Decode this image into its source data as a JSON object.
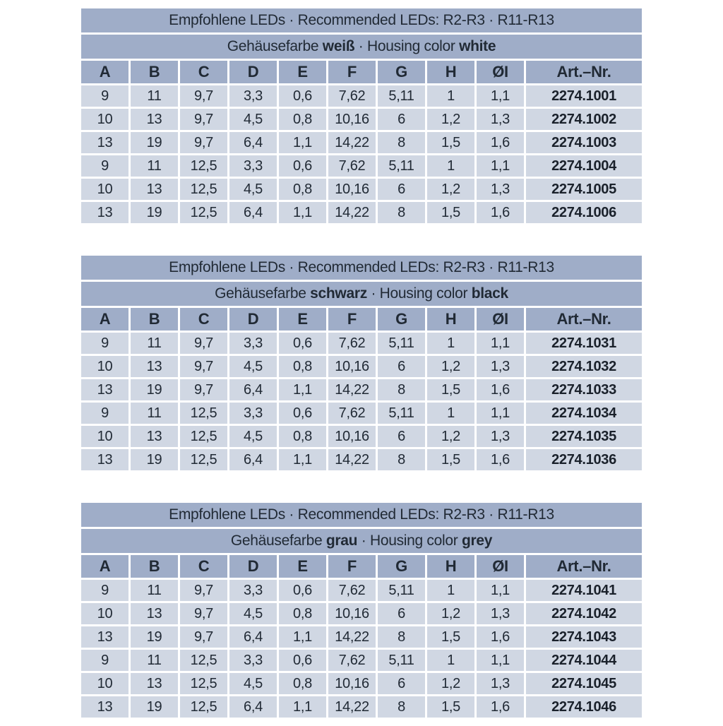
{
  "shared": {
    "title": "Empfohlene LEDs · Recommended LEDs: R2-R3 · R11-R13",
    "columns": [
      "A",
      "B",
      "C",
      "D",
      "E",
      "F",
      "G",
      "H",
      "ØI",
      "Art.–Nr."
    ]
  },
  "colors": {
    "band": "#9fadc8",
    "data_row": "#d0d7e3",
    "separator": "#ffffff",
    "text": "#212a35"
  },
  "tables": [
    {
      "name": "housing-white",
      "subtitle": {
        "de_prefix": "Gehäusefarbe ",
        "de_color": "weiß",
        "mid": " · Housing color ",
        "en_color": "white"
      },
      "rows": [
        [
          "9",
          "11",
          "9,7",
          "3,3",
          "0,6",
          "7,62",
          "5,11",
          "1",
          "1,1",
          "2274.1001"
        ],
        [
          "10",
          "13",
          "9,7",
          "4,5",
          "0,8",
          "10,16",
          "6",
          "1,2",
          "1,3",
          "2274.1002"
        ],
        [
          "13",
          "19",
          "9,7",
          "6,4",
          "1,1",
          "14,22",
          "8",
          "1,5",
          "1,6",
          "2274.1003"
        ],
        [
          "9",
          "11",
          "12,5",
          "3,3",
          "0,6",
          "7,62",
          "5,11",
          "1",
          "1,1",
          "2274.1004"
        ],
        [
          "10",
          "13",
          "12,5",
          "4,5",
          "0,8",
          "10,16",
          "6",
          "1,2",
          "1,3",
          "2274.1005"
        ],
        [
          "13",
          "19",
          "12,5",
          "6,4",
          "1,1",
          "14,22",
          "8",
          "1,5",
          "1,6",
          "2274.1006"
        ]
      ]
    },
    {
      "name": "housing-black",
      "subtitle": {
        "de_prefix": "Gehäusefarbe ",
        "de_color": "schwarz",
        "mid": " · Housing color ",
        "en_color": "black"
      },
      "rows": [
        [
          "9",
          "11",
          "9,7",
          "3,3",
          "0,6",
          "7,62",
          "5,11",
          "1",
          "1,1",
          "2274.1031"
        ],
        [
          "10",
          "13",
          "9,7",
          "4,5",
          "0,8",
          "10,16",
          "6",
          "1,2",
          "1,3",
          "2274.1032"
        ],
        [
          "13",
          "19",
          "9,7",
          "6,4",
          "1,1",
          "14,22",
          "8",
          "1,5",
          "1,6",
          "2274.1033"
        ],
        [
          "9",
          "11",
          "12,5",
          "3,3",
          "0,6",
          "7,62",
          "5,11",
          "1",
          "1,1",
          "2274.1034"
        ],
        [
          "10",
          "13",
          "12,5",
          "4,5",
          "0,8",
          "10,16",
          "6",
          "1,2",
          "1,3",
          "2274.1035"
        ],
        [
          "13",
          "19",
          "12,5",
          "6,4",
          "1,1",
          "14,22",
          "8",
          "1,5",
          "1,6",
          "2274.1036"
        ]
      ]
    },
    {
      "name": "housing-grey",
      "subtitle": {
        "de_prefix": "Gehäusefarbe ",
        "de_color": "grau",
        "mid": " · Housing color ",
        "en_color": "grey"
      },
      "rows": [
        [
          "9",
          "11",
          "9,7",
          "3,3",
          "0,6",
          "7,62",
          "5,11",
          "1",
          "1,1",
          "2274.1041"
        ],
        [
          "10",
          "13",
          "9,7",
          "4,5",
          "0,8",
          "10,16",
          "6",
          "1,2",
          "1,3",
          "2274.1042"
        ],
        [
          "13",
          "19",
          "9,7",
          "6,4",
          "1,1",
          "14,22",
          "8",
          "1,5",
          "1,6",
          "2274.1043"
        ],
        [
          "9",
          "11",
          "12,5",
          "3,3",
          "0,6",
          "7,62",
          "5,11",
          "1",
          "1,1",
          "2274.1044"
        ],
        [
          "10",
          "13",
          "12,5",
          "4,5",
          "0,8",
          "10,16",
          "6",
          "1,2",
          "1,3",
          "2274.1045"
        ],
        [
          "13",
          "19",
          "12,5",
          "6,4",
          "1,1",
          "14,22",
          "8",
          "1,5",
          "1,6",
          "2274.1046"
        ]
      ]
    }
  ]
}
